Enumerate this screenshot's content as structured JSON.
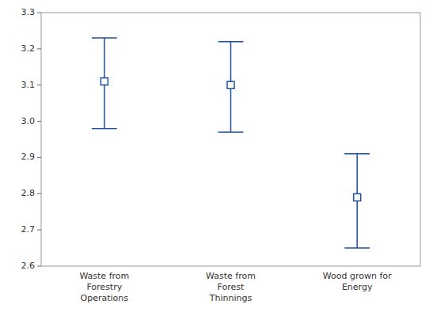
{
  "chart_data": {
    "type": "errorbar",
    "categories": [
      "Waste from\nForestry\nOperations",
      "Waste from\nForest\nThinnings",
      "Wood grown for\nEnergy"
    ],
    "values": [
      3.11,
      3.1,
      2.79
    ],
    "ci_lower": [
      2.98,
      2.97,
      2.65
    ],
    "ci_upper": [
      3.23,
      3.22,
      2.91
    ],
    "ylim": [
      2.6,
      3.3
    ],
    "yticks": [
      2.6,
      2.7,
      2.8,
      2.9,
      {
        "value": 3.0,
        "label": "3.0"
      },
      3.1,
      3.2,
      3.3
    ]
  }
}
